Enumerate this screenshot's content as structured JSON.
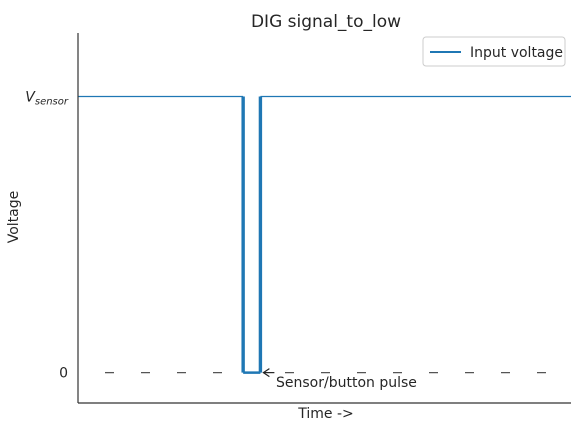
{
  "chart_data": {
    "type": "line",
    "title": "DIG signal_to_low",
    "xlabel": "Time ->",
    "ylabel": "Voltage",
    "xticks": [],
    "yticks": [
      {
        "value": 0,
        "label": "0"
      },
      {
        "value": 1,
        "label": "V",
        "subscript": "sensor"
      }
    ],
    "xlim": [
      0,
      10
    ],
    "ylim": [
      -0.11,
      1.23
    ],
    "series": [
      {
        "name": "Input voltage",
        "color": "#1f77b4",
        "x": [
          0,
          3.35,
          3.35,
          3.7,
          3.7,
          10
        ],
        "y": [
          1,
          1,
          0,
          0,
          1,
          1
        ]
      }
    ],
    "reference_lines": [
      {
        "y": 0,
        "style": "dashed",
        "color": "#555555"
      }
    ],
    "annotations": [
      {
        "text": "Sensor/button pulse",
        "x": 3.72,
        "y": 0,
        "arrow": true
      }
    ],
    "legend": {
      "position": "top-right"
    },
    "grid": false
  }
}
